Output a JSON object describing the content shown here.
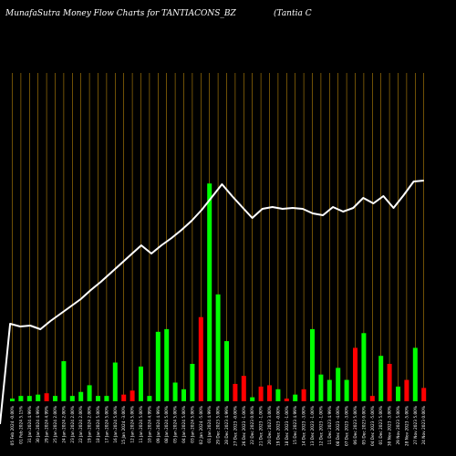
{
  "header": {
    "title": "MunafaSutra  Money Flow  Charts for TANTIACONS_BZ",
    "company": "(Tantia  C"
  },
  "colors": {
    "background": "#000000",
    "grid": "#b8860b",
    "up": "#00ff00",
    "down": "#ff0000",
    "line": "#ffffff",
    "text": "#ffffff"
  },
  "chart_data": {
    "type": "bar",
    "categories": [
      "05 Feb 2024 -0.00%",
      "01 Feb 2024 5.15%",
      "31 Jan 2024 4.99%",
      "30 Jan 2024 4.99%",
      "29 Jan 2024 4.99%",
      "25 Jan 2024 2.00%",
      "24 Jan 2024 2.00%",
      "23 Jan 2024 2.00%",
      "22 Jan 2024 2.00%",
      "19 Jan 2024 2.00%",
      "18 Jan 2024 5.00%",
      "17 Jan 2024 5.00%",
      "16 Jan 2024 5.00%",
      "15 Jan 2024 -3.00%",
      "12 Jan 2024 5.00%",
      "11 Jan 2024 5.00%",
      "10 Jan 2024 4.99%",
      "09 Jan 2024 4.99%",
      "08 Jan 2024 5.00%",
      "05 Jan 2024 5.00%",
      "04 Jan 2024 5.00%",
      "03 Jan 2024 5.00%",
      "02 Jan 2024 -5.00%",
      "01 Jan 2024 4.99%",
      "29 Dec 2023 5.00%",
      "28 Dec 2023 4.99%",
      "27 Dec 2023 -0.00%",
      "26 Dec 2023 -1.00%",
      "22 Dec 2023 0.00%",
      "21 Dec 2023 -1.00%",
      "20 Dec 2023 3.00%",
      "19 Dec 2023 -0.00%",
      "18 Dec 2023 -1.00%",
      "15 Dec 2023 4.99%",
      "14 Dec 2023 -3.00%",
      "13 Dec 2023 -1.00%",
      "12 Dec 2023 -1.00%",
      "11 Dec 2023 4.99%",
      "08 Dec 2023 -4.00%",
      "07 Dec 2023 -3.00%",
      "06 Dec 2023 5.00%",
      "05 Dec 2023 0.00%",
      "04 Dec 2023 -5.00%",
      "01 Dec 2023 5.00%",
      "30 Nov 2023 -3.00%",
      "29 Nov 2023 5.00%",
      "28 Nov 2023 -5.00%",
      "27 Nov 2023 5.00%",
      "24 Nov 2023 0.00%"
    ],
    "values": [
      2,
      4,
      4,
      5,
      6,
      4,
      30,
      4,
      7,
      12,
      4,
      4,
      29,
      5,
      8,
      26,
      4,
      52,
      54,
      14,
      9,
      28,
      63,
      163,
      80,
      45,
      13,
      19,
      3,
      11,
      12,
      9,
      2,
      5,
      9,
      54,
      20,
      16,
      25,
      16,
      40,
      51,
      4,
      34,
      28,
      11,
      16,
      40,
      10
    ],
    "directions": [
      "up",
      "up",
      "up",
      "up",
      "down",
      "up",
      "up",
      "up",
      "up",
      "up",
      "up",
      "up",
      "up",
      "down",
      "down",
      "up",
      "up",
      "up",
      "up",
      "up",
      "up",
      "up",
      "down",
      "up",
      "up",
      "up",
      "down",
      "down",
      "up",
      "down",
      "down",
      "up",
      "down",
      "up",
      "down",
      "up",
      "up",
      "up",
      "up",
      "up",
      "down",
      "up",
      "down",
      "up",
      "down",
      "up",
      "down",
      "up",
      "down"
    ],
    "line": [
      -55,
      55,
      52,
      53,
      49,
      58,
      66,
      74,
      82,
      92,
      101,
      111,
      121,
      131,
      141,
      132,
      141,
      149,
      158,
      168,
      180,
      194,
      208,
      195,
      183,
      171,
      181,
      183,
      181,
      182,
      181,
      176,
      174,
      183,
      178,
      182,
      193,
      187,
      195,
      182,
      196,
      211,
      212
    ],
    "title": "MunafaSutra  Money Flow  Charts for TANTIACONS_BZ",
    "xlabel": "",
    "ylabel": "",
    "grid": true,
    "legend": "none"
  }
}
